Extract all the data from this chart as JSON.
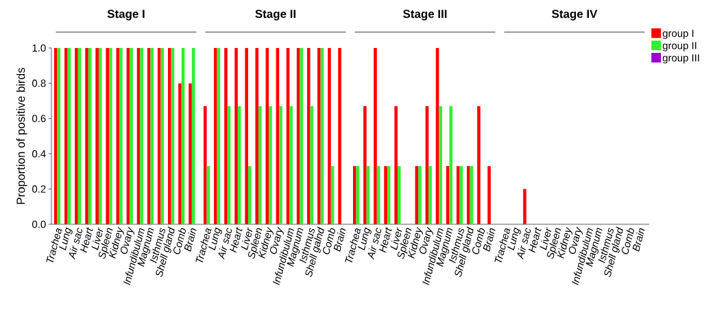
{
  "chart_data": [
    {
      "type": "bar",
      "title": "Stage I",
      "ylabel": "Proportion of positive birds",
      "categories": [
        "Trachea",
        "Lung",
        "Air sac",
        "Heart",
        "Liver",
        "Spleen",
        "Kidney",
        "Ovary",
        "Infundibulum",
        "Magnum",
        "Isthmus",
        "Shell gland",
        "Comb",
        "Brain"
      ],
      "series": [
        {
          "color": "#ff0000",
          "values": [
            1,
            1,
            1,
            1,
            1,
            1,
            1,
            1,
            1,
            1,
            1,
            1,
            0.8,
            0.8
          ]
        },
        {
          "color": "#33ee33",
          "values": [
            1,
            1,
            1,
            1,
            1,
            1,
            1,
            1,
            1,
            1,
            1,
            1,
            1,
            1
          ]
        },
        {
          "color": "#9900cc",
          "values": [
            0,
            0,
            0,
            0,
            0,
            0,
            0,
            0,
            0,
            0,
            0,
            0,
            0,
            0
          ]
        }
      ],
      "ylim": [
        0,
        1
      ],
      "yticks": [
        {
          "value": 0,
          "label": "0.0"
        },
        {
          "value": 0.2,
          "label": "0.2"
        },
        {
          "value": 0.4,
          "label": "0.4"
        },
        {
          "value": 0.6,
          "label": "0.6"
        },
        {
          "value": 0.8,
          "label": "0.8"
        },
        {
          "value": 1,
          "label": "1.0"
        }
      ]
    },
    {
      "type": "bar",
      "title": "Stage II",
      "categories": [
        "Trachea",
        "Lung",
        "Air sac",
        "Heart",
        "Liver",
        "Spleen",
        "Kidney",
        "Ovary",
        "Infundibulum",
        "Magnum",
        "Isthmus",
        "Shell galnd",
        "Comb",
        "Brain"
      ],
      "series": [
        {
          "color": "#ff0000",
          "values": [
            0.67,
            1,
            1,
            1,
            1,
            1,
            1,
            1,
            1,
            1,
            1,
            1,
            1,
            1
          ]
        },
        {
          "color": "#33ee33",
          "values": [
            0.33,
            1,
            0.67,
            0.67,
            0.33,
            0.67,
            0.67,
            0.67,
            0.67,
            1,
            0.67,
            1,
            0.33,
            0
          ]
        },
        {
          "color": "#9900cc",
          "values": [
            0,
            0,
            0,
            0,
            0,
            0,
            0,
            0,
            0,
            0,
            0,
            0,
            0,
            0
          ]
        }
      ],
      "ylim": [
        0,
        1
      ],
      "tick_labels": "x"
    },
    {
      "type": "bar",
      "title": "Stage III",
      "categories": [
        "Trachea",
        "Lung",
        "Air sac",
        "Heart",
        "Liver",
        "Spleen",
        "Kidney",
        "Ovary",
        "Infundibulum",
        "Magnum",
        "Isthmus",
        "Shell gland",
        "Comb",
        "Brain"
      ],
      "series": [
        {
          "color": "#ff0000",
          "values": [
            0.33,
            0.67,
            1,
            0.33,
            0.67,
            0,
            0.33,
            0.67,
            1,
            0.33,
            0.33,
            0.33,
            0.67,
            0.33
          ]
        },
        {
          "color": "#33ee33",
          "values": [
            0.33,
            0.33,
            0.33,
            0.33,
            0.33,
            0,
            0.33,
            0.33,
            0.67,
            0.67,
            0.33,
            0.33,
            0,
            0
          ]
        },
        {
          "color": "#9900cc",
          "values": [
            0,
            0,
            0,
            0,
            0,
            0,
            0,
            0,
            0,
            0,
            0,
            0,
            0,
            0
          ]
        }
      ],
      "ylim": [
        0,
        1
      ],
      "tick_labels": "x"
    },
    {
      "type": "bar",
      "title": "Stage IV",
      "categories": [
        "Trachea",
        "Lung",
        "Air sac",
        "Heart",
        "Liver",
        "Spleen",
        "Kidney",
        "Ovary",
        "Infundibulum",
        "Magnum",
        "Isthmus",
        "Shell gland",
        "Comb",
        "Brain"
      ],
      "series": [
        {
          "name": "group I",
          "color": "#ff0000",
          "values": [
            0,
            0,
            0.2,
            0,
            0,
            0,
            0,
            0,
            0,
            0,
            0,
            0,
            0,
            0
          ]
        },
        {
          "name": "group II",
          "color": "#33ee33",
          "values": [
            0,
            0,
            0,
            0,
            0,
            0,
            0,
            0,
            0,
            0,
            0,
            0,
            0,
            0
          ]
        },
        {
          "name": "group III",
          "color": "#9900cc",
          "values": [
            0,
            0,
            0,
            0,
            0,
            0,
            0,
            0,
            0,
            0,
            0,
            0,
            0,
            0
          ]
        }
      ],
      "ylim": [
        0,
        1
      ],
      "tick_labels": "x",
      "legend": "top right"
    }
  ]
}
